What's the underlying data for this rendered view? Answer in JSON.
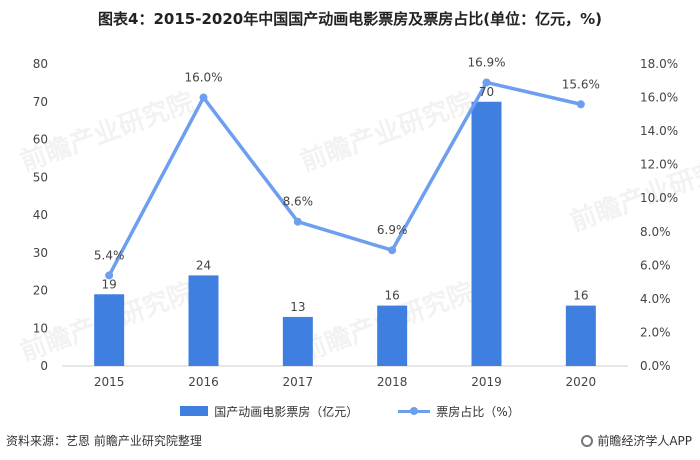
{
  "title": "图表4：2015-2020年中国国产动画电影票房及票房占比(单位：亿元，%)",
  "colors": {
    "bar": "#3f7fe0",
    "line": "#6e9ef0",
    "axis": "#cfcfcf"
  },
  "legend": {
    "bar_label": "国产动画电影票房（亿元）",
    "line_label": "票房占比（%）"
  },
  "footer": {
    "source": "资料来源：艺恩 前瞻产业研究院整理",
    "brand": "前瞻经济学人APP"
  },
  "watermark": "前瞻产业研究院",
  "chart_data": {
    "type": "bar",
    "categories": [
      "2015",
      "2016",
      "2017",
      "2018",
      "2019",
      "2020"
    ],
    "series": [
      {
        "name": "国产动画电影票房（亿元）",
        "type": "bar",
        "axis": "left",
        "values": [
          19,
          24,
          13,
          16,
          70,
          16
        ],
        "labels": [
          "19",
          "24",
          "13",
          "16",
          "70",
          "16"
        ]
      },
      {
        "name": "票房占比（%）",
        "type": "line",
        "axis": "right",
        "values": [
          5.4,
          16.0,
          8.6,
          6.9,
          16.9,
          15.6
        ],
        "labels": [
          "5.4%",
          "16.0%",
          "8.6%",
          "6.9%",
          "16.9%",
          "15.6%"
        ]
      }
    ],
    "y_left": {
      "min": 0,
      "max": 80,
      "ticks": [
        "0",
        "10",
        "20",
        "30",
        "40",
        "50",
        "60",
        "70",
        "80"
      ]
    },
    "y_right": {
      "min": 0,
      "max": 18,
      "ticks": [
        "0.0%",
        "2.0%",
        "4.0%",
        "6.0%",
        "8.0%",
        "10.0%",
        "12.0%",
        "14.0%",
        "16.0%",
        "18.0%"
      ]
    },
    "grid": false,
    "legend_position": "bottom"
  }
}
